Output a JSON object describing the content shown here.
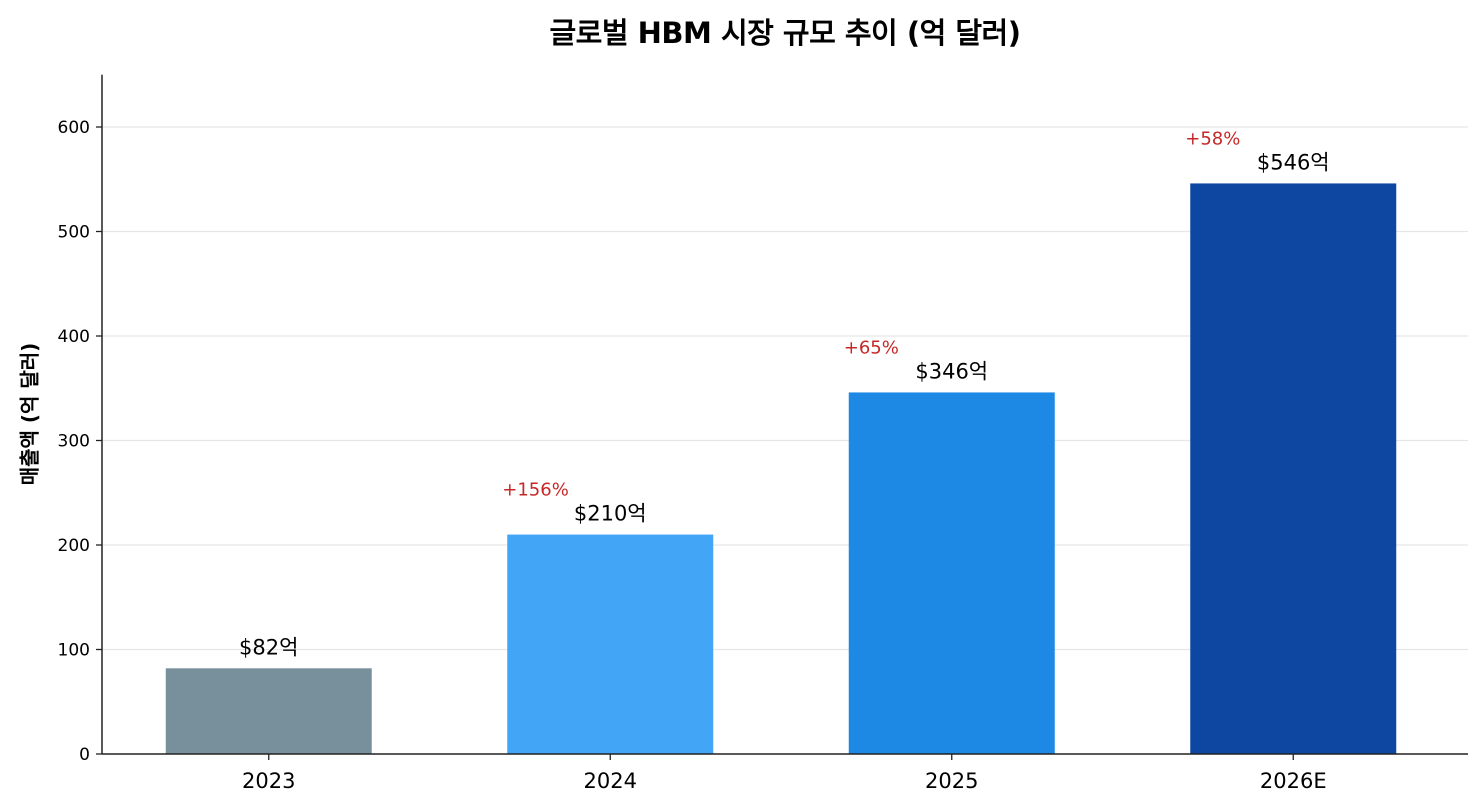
{
  "chart_data": {
    "type": "bar",
    "title": "글로벌 HBM 시장 규모 추이 (억 달러)",
    "xlabel": "",
    "ylabel": "매출액 (억 달러)",
    "categories": [
      "2023",
      "2024",
      "2025",
      "2026E"
    ],
    "values": [
      82,
      210,
      346,
      546
    ],
    "value_labels": [
      "$82억",
      "$210억",
      "$346억",
      "$546억"
    ],
    "growth_labels": [
      "",
      "+156%",
      "+65%",
      "+58%"
    ],
    "bar_colors": [
      "#78909c",
      "#42a5f5",
      "#1e88e5",
      "#0d47a1"
    ],
    "growth_color": "#c62828",
    "ylim": [
      0,
      650
    ],
    "yticks": [
      0,
      100,
      200,
      300,
      400,
      500,
      600
    ],
    "grid": "y",
    "legend": null
  }
}
